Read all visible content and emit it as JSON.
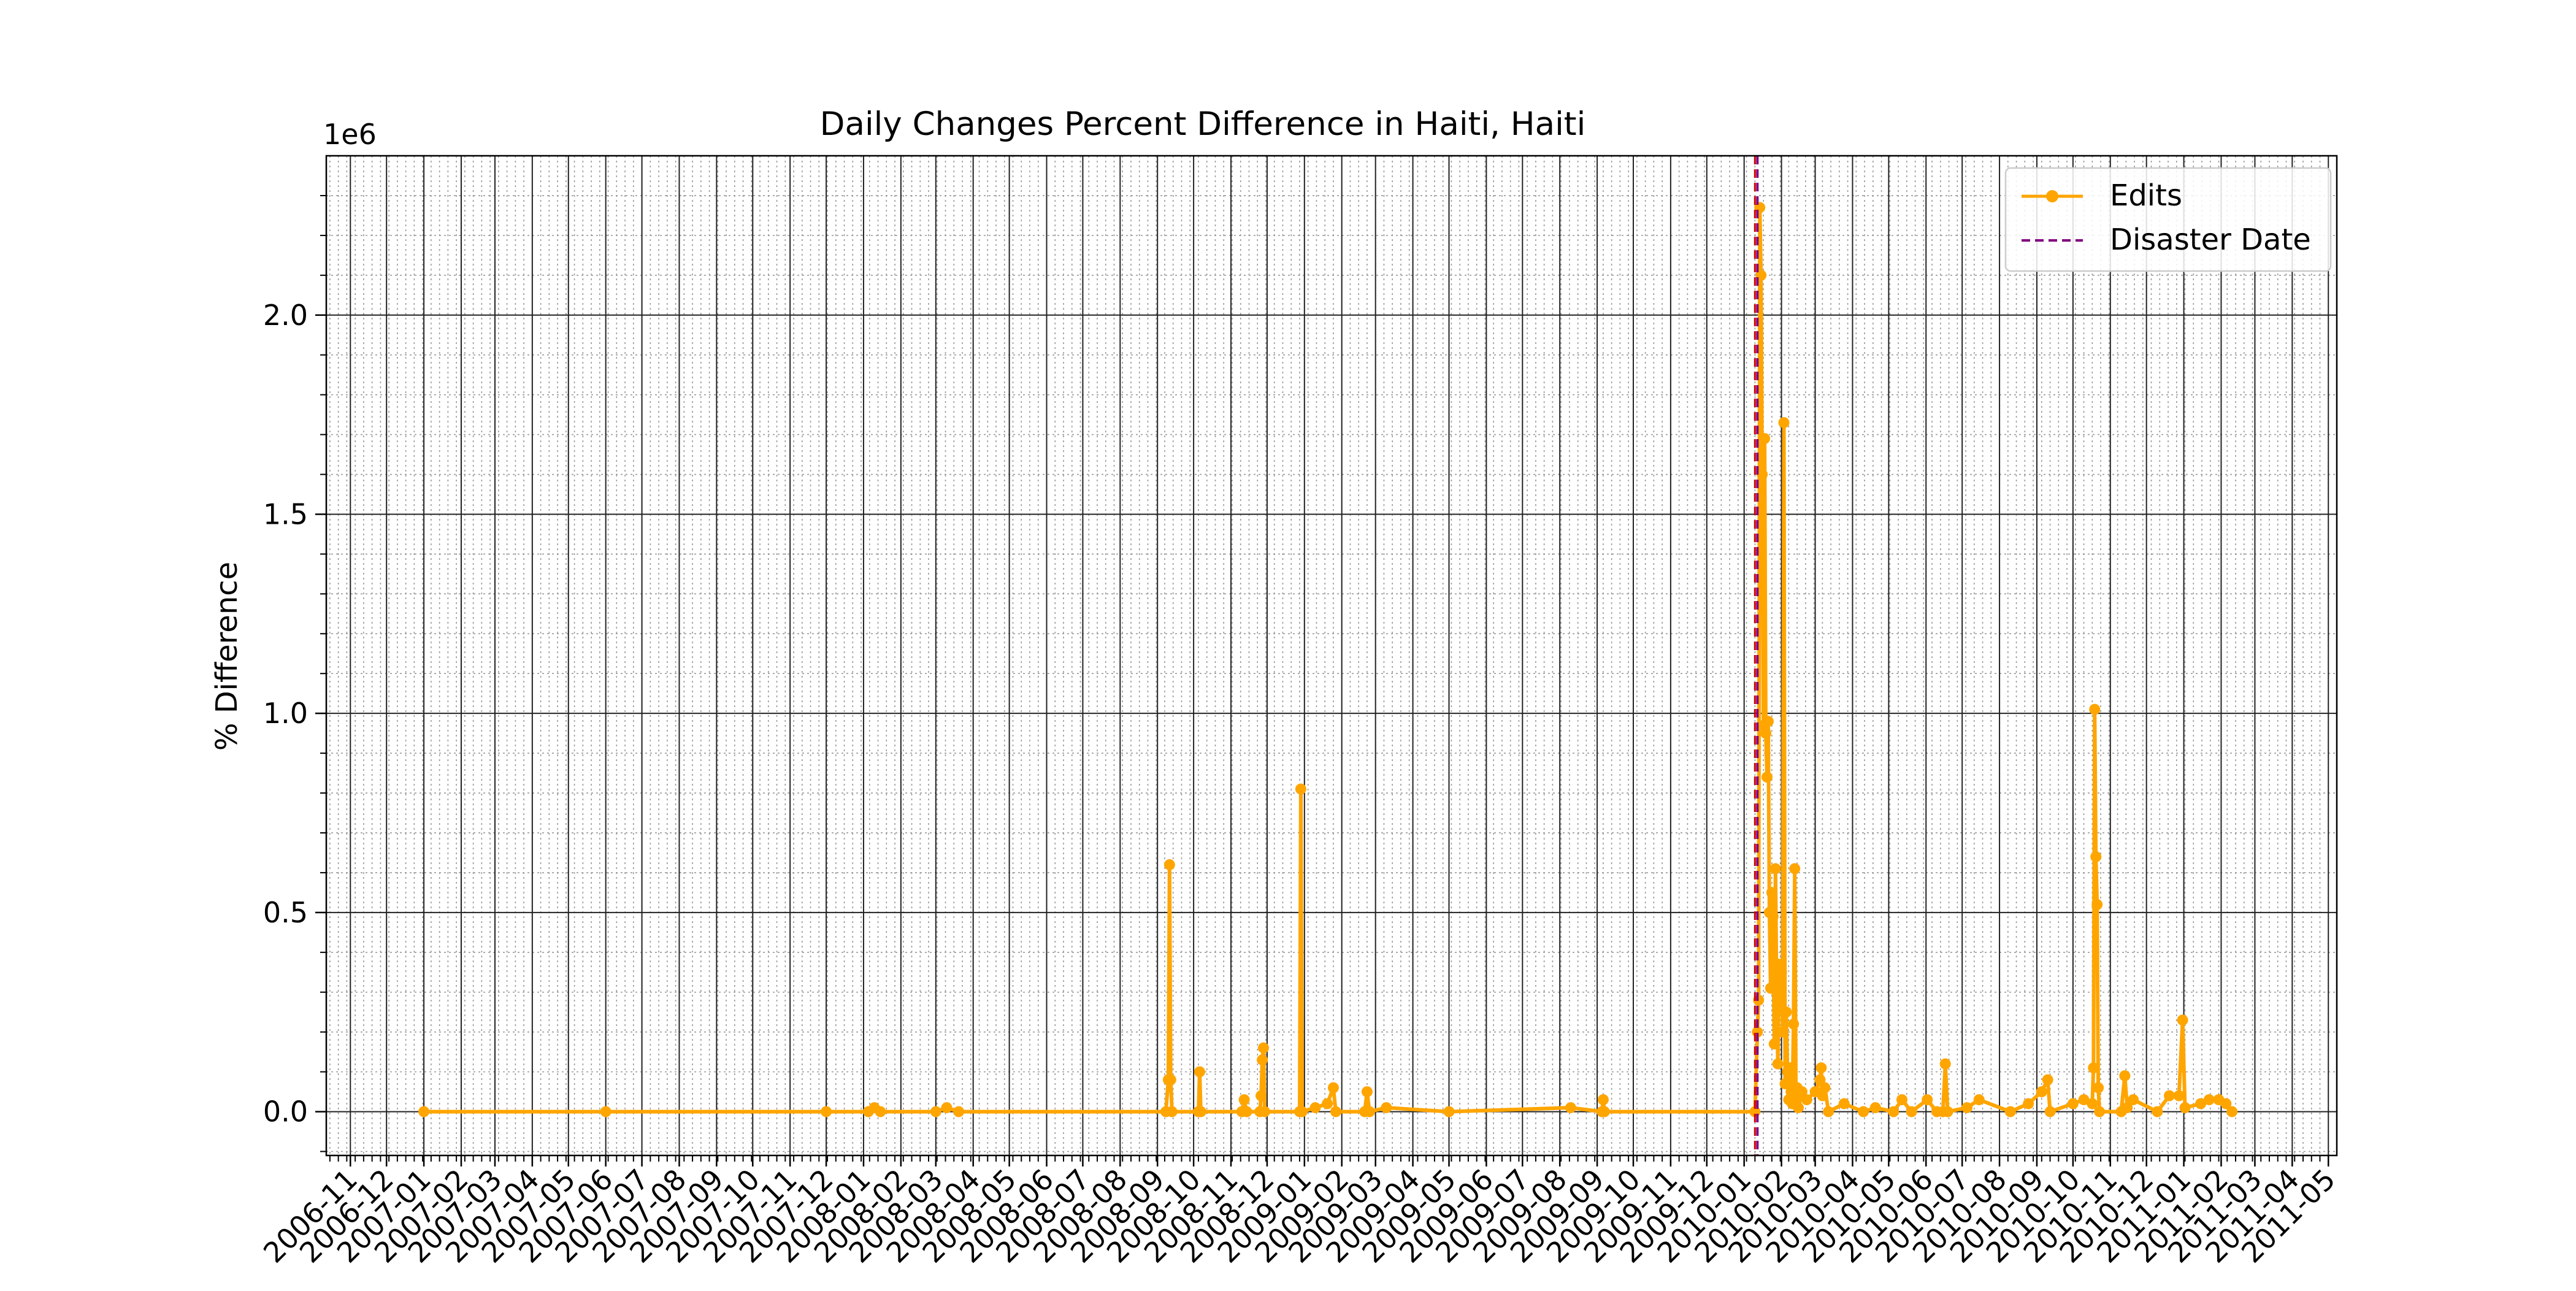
{
  "chart_data": {
    "type": "line",
    "title": "Daily Changes Percent Difference in Haiti, Haiti",
    "xlabel": "",
    "ylabel": "% Difference",
    "y_offset_label": "1e6",
    "x_axis_kind": "date",
    "xlim": [
      "2006-10-12",
      "2011-05-08"
    ],
    "ylim": [
      -0.11,
      2.4
    ],
    "y_ticks": [
      0.0,
      0.5,
      1.0,
      1.5,
      2.0
    ],
    "y_tick_labels": [
      "0.0",
      "0.5",
      "1.0",
      "1.5",
      "2.0"
    ],
    "x_ticks": [
      "2006-11-01",
      "2006-12-01",
      "2007-01-01",
      "2007-02-01",
      "2007-03-01",
      "2007-04-01",
      "2007-05-01",
      "2007-06-01",
      "2007-07-01",
      "2007-08-01",
      "2007-09-01",
      "2007-10-01",
      "2007-11-01",
      "2007-12-01",
      "2008-01-01",
      "2008-02-01",
      "2008-03-01",
      "2008-04-01",
      "2008-05-01",
      "2008-06-01",
      "2008-07-01",
      "2008-08-01",
      "2008-09-01",
      "2008-10-01",
      "2008-11-01",
      "2008-12-01",
      "2009-01-01",
      "2009-02-01",
      "2009-03-01",
      "2009-04-01",
      "2009-05-01",
      "2009-06-01",
      "2009-07-01",
      "2009-08-01",
      "2009-09-01",
      "2009-10-01",
      "2009-11-01",
      "2009-12-01",
      "2010-01-01",
      "2010-02-01",
      "2010-03-01",
      "2010-04-01",
      "2010-05-01",
      "2010-06-01",
      "2010-07-01",
      "2010-08-01",
      "2010-09-01",
      "2010-10-01",
      "2010-11-01",
      "2010-12-01",
      "2011-01-01",
      "2011-02-01",
      "2011-03-01",
      "2011-04-01",
      "2011-05-01"
    ],
    "x_tick_labels": [
      "2006-11",
      "2006-12",
      "2007-01",
      "2007-02",
      "2007-03",
      "2007-04",
      "2007-05",
      "2007-06",
      "2007-07",
      "2007-08",
      "2007-09",
      "2007-10",
      "2007-11",
      "2007-12",
      "2008-01",
      "2008-02",
      "2008-03",
      "2008-04",
      "2008-05",
      "2008-06",
      "2008-07",
      "2008-08",
      "2008-09",
      "2008-10",
      "2008-11",
      "2008-12",
      "2009-01",
      "2009-02",
      "2009-03",
      "2009-04",
      "2009-05",
      "2009-06",
      "2009-07",
      "2009-08",
      "2009-09",
      "2009-10",
      "2009-11",
      "2009-12",
      "2010-01",
      "2010-02",
      "2010-03",
      "2010-04",
      "2010-05",
      "2010-06",
      "2010-07",
      "2010-08",
      "2010-09",
      "2010-10",
      "2010-11",
      "2010-12",
      "2011-01",
      "2011-02",
      "2011-03",
      "2011-04",
      "2011-05"
    ],
    "grid": true,
    "minor_grid": true,
    "legend_position": "top-right",
    "colors": {
      "edits": "#FFA500",
      "disaster": "#800080",
      "disaster_red": "#CC0000"
    },
    "series": [
      {
        "name": "Edits",
        "marker": "circle",
        "points": [
          [
            "2007-01-01",
            0.0
          ],
          [
            "2007-06-01",
            0.0
          ],
          [
            "2007-12-01",
            0.0
          ],
          [
            "2008-01-05",
            0.0
          ],
          [
            "2008-01-10",
            0.01
          ],
          [
            "2008-01-15",
            0.0
          ],
          [
            "2008-03-01",
            0.0
          ],
          [
            "2008-03-10",
            0.01
          ],
          [
            "2008-03-20",
            0.0
          ],
          [
            "2008-09-08",
            0.0
          ],
          [
            "2008-09-10",
            0.08
          ],
          [
            "2008-09-11",
            0.62
          ],
          [
            "2008-09-12",
            0.08
          ],
          [
            "2008-09-13",
            0.0
          ],
          [
            "2008-10-05",
            0.0
          ],
          [
            "2008-10-06",
            0.1
          ],
          [
            "2008-10-07",
            0.0
          ],
          [
            "2008-11-10",
            0.0
          ],
          [
            "2008-11-12",
            0.03
          ],
          [
            "2008-11-14",
            0.0
          ],
          [
            "2008-11-25",
            0.0
          ],
          [
            "2008-11-26",
            0.04
          ],
          [
            "2008-11-27",
            0.13
          ],
          [
            "2008-11-28",
            0.16
          ],
          [
            "2008-11-29",
            0.0
          ],
          [
            "2008-12-28",
            0.0
          ],
          [
            "2008-12-29",
            0.81
          ],
          [
            "2008-12-30",
            0.0
          ],
          [
            "2009-01-10",
            0.01
          ],
          [
            "2009-01-20",
            0.02
          ],
          [
            "2009-01-25",
            0.06
          ],
          [
            "2009-01-27",
            0.0
          ],
          [
            "2009-02-20",
            0.0
          ],
          [
            "2009-02-22",
            0.05
          ],
          [
            "2009-02-24",
            0.0
          ],
          [
            "2009-03-10",
            0.01
          ],
          [
            "2009-05-01",
            0.0
          ],
          [
            "2009-08-10",
            0.01
          ],
          [
            "2009-09-05",
            0.0
          ],
          [
            "2009-09-06",
            0.03
          ],
          [
            "2009-09-07",
            0.0
          ],
          [
            "2010-01-10",
            0.0
          ],
          [
            "2010-01-12",
            0.2
          ],
          [
            "2010-01-13",
            0.28
          ],
          [
            "2010-01-14",
            2.27
          ],
          [
            "2010-01-15",
            2.1
          ],
          [
            "2010-01-16",
            1.6
          ],
          [
            "2010-01-17",
            0.97
          ],
          [
            "2010-01-18",
            1.69
          ],
          [
            "2010-01-19",
            0.95
          ],
          [
            "2010-01-20",
            0.84
          ],
          [
            "2010-01-21",
            0.98
          ],
          [
            "2010-01-22",
            0.5
          ],
          [
            "2010-01-23",
            0.31
          ],
          [
            "2010-01-24",
            0.55
          ],
          [
            "2010-01-25",
            0.49
          ],
          [
            "2010-01-26",
            0.17
          ],
          [
            "2010-01-27",
            0.61
          ],
          [
            "2010-01-28",
            0.3
          ],
          [
            "2010-01-29",
            0.12
          ],
          [
            "2010-01-30",
            0.37
          ],
          [
            "2010-01-31",
            0.26
          ],
          [
            "2010-02-01",
            0.35
          ],
          [
            "2010-02-02",
            0.2
          ],
          [
            "2010-02-03",
            1.73
          ],
          [
            "2010-02-04",
            0.07
          ],
          [
            "2010-02-05",
            0.25
          ],
          [
            "2010-02-06",
            0.1
          ],
          [
            "2010-02-07",
            0.03
          ],
          [
            "2010-02-08",
            0.11
          ],
          [
            "2010-02-09",
            0.05
          ],
          [
            "2010-02-10",
            0.02
          ],
          [
            "2010-02-11",
            0.22
          ],
          [
            "2010-02-12",
            0.61
          ],
          [
            "2010-02-13",
            0.04
          ],
          [
            "2010-02-14",
            0.06
          ],
          [
            "2010-02-15",
            0.01
          ],
          [
            "2010-02-18",
            0.05
          ],
          [
            "2010-02-22",
            0.03
          ],
          [
            "2010-03-01",
            0.05
          ],
          [
            "2010-03-05",
            0.08
          ],
          [
            "2010-03-06",
            0.11
          ],
          [
            "2010-03-07",
            0.04
          ],
          [
            "2010-03-09",
            0.06
          ],
          [
            "2010-03-12",
            0.0
          ],
          [
            "2010-03-25",
            0.02
          ],
          [
            "2010-04-10",
            0.0
          ],
          [
            "2010-04-20",
            0.01
          ],
          [
            "2010-05-05",
            0.0
          ],
          [
            "2010-05-12",
            0.03
          ],
          [
            "2010-05-20",
            0.0
          ],
          [
            "2010-06-02",
            0.03
          ],
          [
            "2010-06-10",
            0.0
          ],
          [
            "2010-06-15",
            0.0
          ],
          [
            "2010-06-17",
            0.12
          ],
          [
            "2010-06-19",
            0.0
          ],
          [
            "2010-07-05",
            0.01
          ],
          [
            "2010-07-15",
            0.03
          ],
          [
            "2010-08-10",
            0.0
          ],
          [
            "2010-08-25",
            0.02
          ],
          [
            "2010-09-05",
            0.05
          ],
          [
            "2010-09-10",
            0.08
          ],
          [
            "2010-09-12",
            0.0
          ],
          [
            "2010-10-01",
            0.02
          ],
          [
            "2010-10-10",
            0.03
          ],
          [
            "2010-10-17",
            0.02
          ],
          [
            "2010-10-18",
            0.11
          ],
          [
            "2010-10-19",
            1.01
          ],
          [
            "2010-10-20",
            0.64
          ],
          [
            "2010-10-21",
            0.52
          ],
          [
            "2010-10-22",
            0.06
          ],
          [
            "2010-10-23",
            0.0
          ],
          [
            "2010-11-10",
            0.0
          ],
          [
            "2010-11-13",
            0.09
          ],
          [
            "2010-11-15",
            0.01
          ],
          [
            "2010-11-20",
            0.03
          ],
          [
            "2010-12-10",
            0.0
          ],
          [
            "2010-12-20",
            0.04
          ],
          [
            "2010-12-28",
            0.04
          ],
          [
            "2010-12-31",
            0.23
          ],
          [
            "2011-01-02",
            0.01
          ],
          [
            "2011-01-15",
            0.02
          ],
          [
            "2011-01-22",
            0.03
          ],
          [
            "2011-01-30",
            0.03
          ],
          [
            "2011-02-05",
            0.02
          ],
          [
            "2011-02-10",
            0.0
          ]
        ]
      }
    ],
    "vlines": [
      {
        "name": "Disaster Date",
        "x": "2010-01-12",
        "style": "dashed"
      }
    ],
    "legend": [
      {
        "label": "Edits",
        "series": "edits"
      },
      {
        "label": "Disaster Date",
        "series": "disaster"
      }
    ]
  }
}
